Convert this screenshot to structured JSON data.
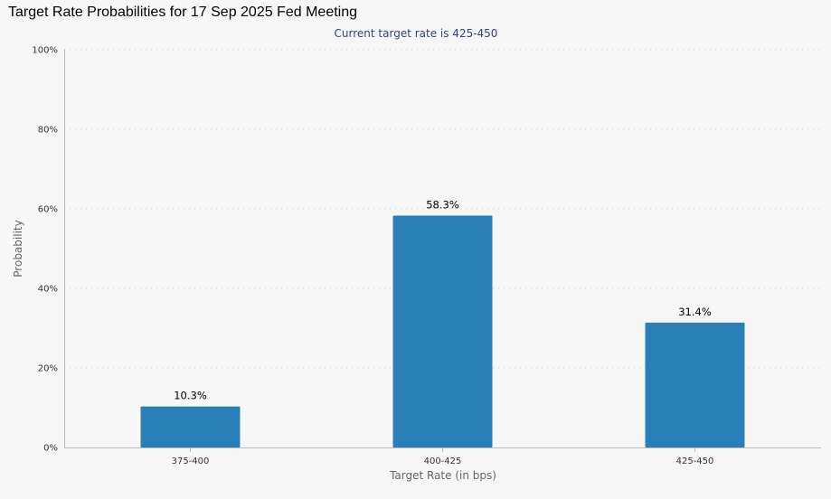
{
  "chart_data": {
    "type": "bar",
    "title": "Target Rate Probabilities for 17 Sep 2025 Fed Meeting",
    "subtitle": "Current target rate is 425-450",
    "xlabel": "Target Rate (in bps)",
    "ylabel": "Probability",
    "categories": [
      "375-400",
      "400-425",
      "425-450"
    ],
    "values": [
      10.3,
      58.3,
      31.4
    ],
    "data_labels": [
      "10.3%",
      "58.3%",
      "31.4%"
    ],
    "ylim": [
      0,
      100
    ],
    "yticks": [
      {
        "value": 0,
        "label": "0%"
      },
      {
        "value": 20,
        "label": "20%"
      },
      {
        "value": 40,
        "label": "40%"
      },
      {
        "value": 60,
        "label": "60%"
      },
      {
        "value": 80,
        "label": "80%"
      },
      {
        "value": 100,
        "label": "100%"
      }
    ],
    "grid": true,
    "legend": "none",
    "bar_color": "#2b7fb8",
    "grid_color": "#cccccc",
    "axis_color": "#bbbbbb",
    "subtitle_color": "#34447a"
  }
}
